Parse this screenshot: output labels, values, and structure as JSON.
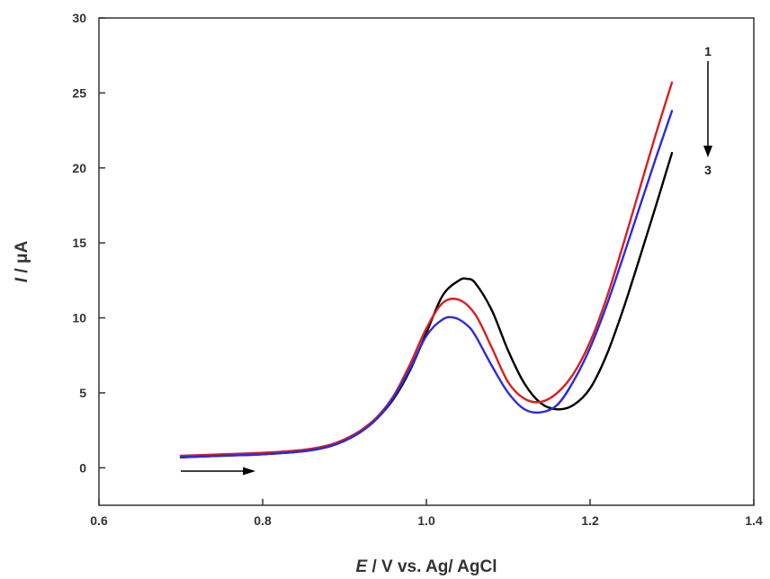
{
  "chart_data": {
    "type": "line",
    "xlabel": {
      "italic": "E",
      "rest": " / V vs. Ag/ AgCl"
    },
    "ylabel": {
      "italic": "I",
      "rest": " / μA"
    },
    "xlim": [
      0.6,
      1.4
    ],
    "ylim": [
      -2.5,
      30
    ],
    "xticks": [
      0.6,
      0.8,
      1.0,
      1.2,
      1.4
    ],
    "xtick_labels": [
      "0.6",
      "0.8",
      "1.0",
      "1.2",
      "1.4"
    ],
    "yticks": [
      0,
      5,
      10,
      15,
      20,
      25,
      30
    ],
    "ytick_labels": [
      "0",
      "5",
      "10",
      "15",
      "20",
      "25",
      "30"
    ],
    "grid": false,
    "annotations": [
      {
        "text": "1",
        "note": "top of downward arrow indicating series order"
      },
      {
        "text": "3",
        "note": "bottom of downward arrow"
      }
    ],
    "scan_direction_arrow": "right, near baseline from E=0.70 to E=0.79",
    "series": [
      {
        "color": "#000000",
        "x": [
          0.7,
          0.75,
          0.8,
          0.85,
          0.88,
          0.9,
          0.92,
          0.94,
          0.96,
          0.98,
          1.0,
          1.02,
          1.04,
          1.05,
          1.06,
          1.08,
          1.1,
          1.12,
          1.14,
          1.16,
          1.18,
          1.2,
          1.22,
          1.24,
          1.26,
          1.28,
          1.3
        ],
        "y": [
          0.7,
          0.8,
          0.9,
          1.1,
          1.4,
          1.8,
          2.4,
          3.3,
          4.6,
          6.5,
          9.0,
          11.5,
          12.5,
          12.6,
          12.3,
          10.5,
          7.8,
          5.6,
          4.3,
          3.9,
          4.2,
          5.3,
          7.5,
          10.5,
          13.9,
          17.4,
          21.0
        ]
      },
      {
        "color": "#d62020",
        "x": [
          0.7,
          0.75,
          0.8,
          0.85,
          0.88,
          0.9,
          0.92,
          0.94,
          0.96,
          0.98,
          1.0,
          1.02,
          1.04,
          1.06,
          1.08,
          1.1,
          1.12,
          1.14,
          1.16,
          1.18,
          1.2,
          1.22,
          1.24,
          1.26,
          1.28,
          1.3
        ],
        "y": [
          0.8,
          0.9,
          1.0,
          1.2,
          1.5,
          1.9,
          2.5,
          3.4,
          4.8,
          6.9,
          9.3,
          11.0,
          11.2,
          10.2,
          8.0,
          5.7,
          4.6,
          4.4,
          5.0,
          6.3,
          8.4,
          11.3,
          14.8,
          18.5,
          22.2,
          25.7
        ]
      },
      {
        "color": "#2a2ae0",
        "x": [
          0.7,
          0.75,
          0.8,
          0.85,
          0.88,
          0.9,
          0.92,
          0.94,
          0.96,
          0.98,
          1.0,
          1.02,
          1.035,
          1.05,
          1.06,
          1.08,
          1.1,
          1.12,
          1.14,
          1.16,
          1.18,
          1.2,
          1.22,
          1.24,
          1.26,
          1.28,
          1.3
        ],
        "y": [
          0.7,
          0.8,
          0.9,
          1.1,
          1.4,
          1.8,
          2.4,
          3.3,
          4.7,
          6.6,
          8.8,
          9.9,
          10.0,
          9.5,
          8.8,
          6.8,
          5.0,
          3.9,
          3.7,
          4.2,
          5.8,
          8.0,
          10.8,
          14.0,
          17.3,
          20.6,
          23.8
        ]
      }
    ]
  }
}
